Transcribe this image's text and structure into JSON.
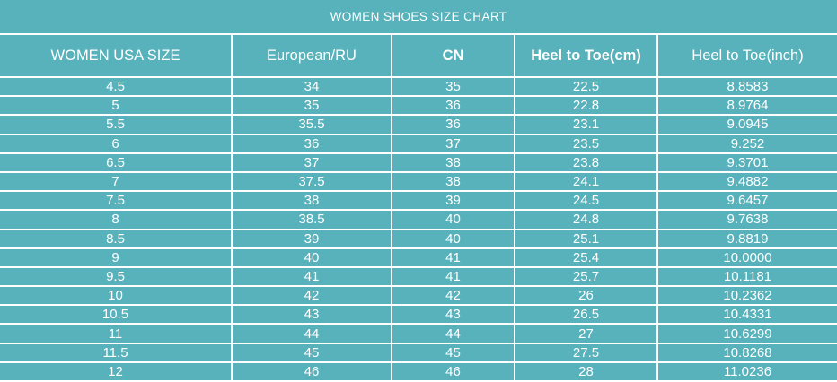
{
  "colors": {
    "background": "#57b2bb",
    "grid_line": "#ffffff",
    "text": "#ffffff"
  },
  "chart_data": {
    "type": "table",
    "title": "WOMEN SHOES SIZE CHART",
    "columns": [
      {
        "label": "WOMEN USA SIZE",
        "bold": false
      },
      {
        "label": "European/RU",
        "bold": false
      },
      {
        "label": "CN",
        "bold": true
      },
      {
        "label": "Heel to Toe(cm)",
        "bold": true
      },
      {
        "label": "Heel to Toe(inch)",
        "bold": false
      }
    ],
    "rows": [
      [
        "4.5",
        "34",
        "35",
        "22.5",
        "8.8583"
      ],
      [
        "5",
        "35",
        "36",
        "22.8",
        "8.9764"
      ],
      [
        "5.5",
        "35.5",
        "36",
        "23.1",
        "9.0945"
      ],
      [
        "6",
        "36",
        "37",
        "23.5",
        "9.252"
      ],
      [
        "6.5",
        "37",
        "38",
        "23.8",
        "9.3701"
      ],
      [
        "7",
        "37.5",
        "38",
        "24.1",
        "9.4882"
      ],
      [
        "7.5",
        "38",
        "39",
        "24.5",
        "9.6457"
      ],
      [
        "8",
        "38.5",
        "40",
        "24.8",
        "9.7638"
      ],
      [
        "8.5",
        "39",
        "40",
        "25.1",
        "9.8819"
      ],
      [
        "9",
        "40",
        "41",
        "25.4",
        "10.0000"
      ],
      [
        "9.5",
        "41",
        "41",
        "25.7",
        "10.1181"
      ],
      [
        "10",
        "42",
        "42",
        "26",
        "10.2362"
      ],
      [
        "10.5",
        "43",
        "43",
        "26.5",
        "10.4331"
      ],
      [
        "11",
        "44",
        "44",
        "27",
        "10.6299"
      ],
      [
        "11.5",
        "45",
        "45",
        "27.5",
        "10.8268"
      ],
      [
        "12",
        "46",
        "46",
        "28",
        "11.0236"
      ]
    ]
  }
}
